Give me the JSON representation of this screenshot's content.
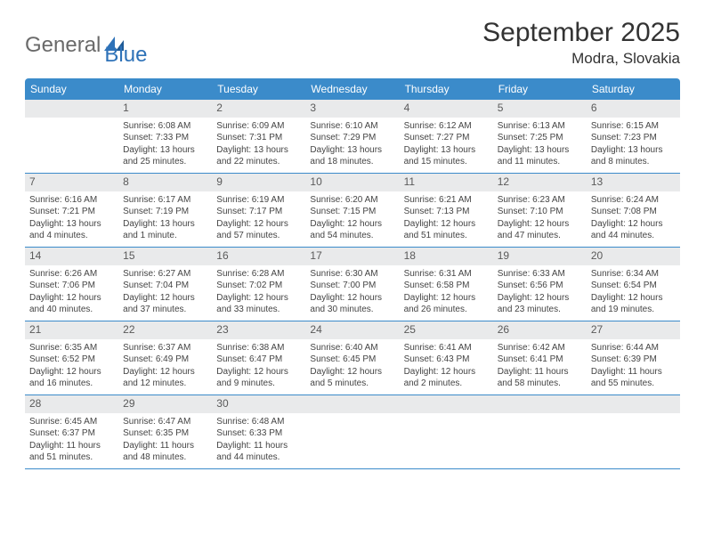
{
  "logo": {
    "part1": "General",
    "part2": "Blue"
  },
  "title": {
    "month": "September 2025",
    "location": "Modra, Slovakia"
  },
  "colors": {
    "header_bg": "#3b8bca",
    "header_text": "#ffffff",
    "daynum_bg": "#e9eaeb",
    "daynum_text": "#5a5a5a",
    "body_text": "#444444",
    "rule": "#3b8bca",
    "logo_gray": "#6a6a6a",
    "logo_blue": "#2e72b8",
    "title_color": "#333333"
  },
  "daynames": [
    "Sunday",
    "Monday",
    "Tuesday",
    "Wednesday",
    "Thursday",
    "Friday",
    "Saturday"
  ],
  "weeks": [
    [
      {
        "n": "",
        "sunrise": "",
        "sunset": "",
        "daylight": ""
      },
      {
        "n": "1",
        "sunrise": "Sunrise: 6:08 AM",
        "sunset": "Sunset: 7:33 PM",
        "daylight": "Daylight: 13 hours and 25 minutes."
      },
      {
        "n": "2",
        "sunrise": "Sunrise: 6:09 AM",
        "sunset": "Sunset: 7:31 PM",
        "daylight": "Daylight: 13 hours and 22 minutes."
      },
      {
        "n": "3",
        "sunrise": "Sunrise: 6:10 AM",
        "sunset": "Sunset: 7:29 PM",
        "daylight": "Daylight: 13 hours and 18 minutes."
      },
      {
        "n": "4",
        "sunrise": "Sunrise: 6:12 AM",
        "sunset": "Sunset: 7:27 PM",
        "daylight": "Daylight: 13 hours and 15 minutes."
      },
      {
        "n": "5",
        "sunrise": "Sunrise: 6:13 AM",
        "sunset": "Sunset: 7:25 PM",
        "daylight": "Daylight: 13 hours and 11 minutes."
      },
      {
        "n": "6",
        "sunrise": "Sunrise: 6:15 AM",
        "sunset": "Sunset: 7:23 PM",
        "daylight": "Daylight: 13 hours and 8 minutes."
      }
    ],
    [
      {
        "n": "7",
        "sunrise": "Sunrise: 6:16 AM",
        "sunset": "Sunset: 7:21 PM",
        "daylight": "Daylight: 13 hours and 4 minutes."
      },
      {
        "n": "8",
        "sunrise": "Sunrise: 6:17 AM",
        "sunset": "Sunset: 7:19 PM",
        "daylight": "Daylight: 13 hours and 1 minute."
      },
      {
        "n": "9",
        "sunrise": "Sunrise: 6:19 AM",
        "sunset": "Sunset: 7:17 PM",
        "daylight": "Daylight: 12 hours and 57 minutes."
      },
      {
        "n": "10",
        "sunrise": "Sunrise: 6:20 AM",
        "sunset": "Sunset: 7:15 PM",
        "daylight": "Daylight: 12 hours and 54 minutes."
      },
      {
        "n": "11",
        "sunrise": "Sunrise: 6:21 AM",
        "sunset": "Sunset: 7:13 PM",
        "daylight": "Daylight: 12 hours and 51 minutes."
      },
      {
        "n": "12",
        "sunrise": "Sunrise: 6:23 AM",
        "sunset": "Sunset: 7:10 PM",
        "daylight": "Daylight: 12 hours and 47 minutes."
      },
      {
        "n": "13",
        "sunrise": "Sunrise: 6:24 AM",
        "sunset": "Sunset: 7:08 PM",
        "daylight": "Daylight: 12 hours and 44 minutes."
      }
    ],
    [
      {
        "n": "14",
        "sunrise": "Sunrise: 6:26 AM",
        "sunset": "Sunset: 7:06 PM",
        "daylight": "Daylight: 12 hours and 40 minutes."
      },
      {
        "n": "15",
        "sunrise": "Sunrise: 6:27 AM",
        "sunset": "Sunset: 7:04 PM",
        "daylight": "Daylight: 12 hours and 37 minutes."
      },
      {
        "n": "16",
        "sunrise": "Sunrise: 6:28 AM",
        "sunset": "Sunset: 7:02 PM",
        "daylight": "Daylight: 12 hours and 33 minutes."
      },
      {
        "n": "17",
        "sunrise": "Sunrise: 6:30 AM",
        "sunset": "Sunset: 7:00 PM",
        "daylight": "Daylight: 12 hours and 30 minutes."
      },
      {
        "n": "18",
        "sunrise": "Sunrise: 6:31 AM",
        "sunset": "Sunset: 6:58 PM",
        "daylight": "Daylight: 12 hours and 26 minutes."
      },
      {
        "n": "19",
        "sunrise": "Sunrise: 6:33 AM",
        "sunset": "Sunset: 6:56 PM",
        "daylight": "Daylight: 12 hours and 23 minutes."
      },
      {
        "n": "20",
        "sunrise": "Sunrise: 6:34 AM",
        "sunset": "Sunset: 6:54 PM",
        "daylight": "Daylight: 12 hours and 19 minutes."
      }
    ],
    [
      {
        "n": "21",
        "sunrise": "Sunrise: 6:35 AM",
        "sunset": "Sunset: 6:52 PM",
        "daylight": "Daylight: 12 hours and 16 minutes."
      },
      {
        "n": "22",
        "sunrise": "Sunrise: 6:37 AM",
        "sunset": "Sunset: 6:49 PM",
        "daylight": "Daylight: 12 hours and 12 minutes."
      },
      {
        "n": "23",
        "sunrise": "Sunrise: 6:38 AM",
        "sunset": "Sunset: 6:47 PM",
        "daylight": "Daylight: 12 hours and 9 minutes."
      },
      {
        "n": "24",
        "sunrise": "Sunrise: 6:40 AM",
        "sunset": "Sunset: 6:45 PM",
        "daylight": "Daylight: 12 hours and 5 minutes."
      },
      {
        "n": "25",
        "sunrise": "Sunrise: 6:41 AM",
        "sunset": "Sunset: 6:43 PM",
        "daylight": "Daylight: 12 hours and 2 minutes."
      },
      {
        "n": "26",
        "sunrise": "Sunrise: 6:42 AM",
        "sunset": "Sunset: 6:41 PM",
        "daylight": "Daylight: 11 hours and 58 minutes."
      },
      {
        "n": "27",
        "sunrise": "Sunrise: 6:44 AM",
        "sunset": "Sunset: 6:39 PM",
        "daylight": "Daylight: 11 hours and 55 minutes."
      }
    ],
    [
      {
        "n": "28",
        "sunrise": "Sunrise: 6:45 AM",
        "sunset": "Sunset: 6:37 PM",
        "daylight": "Daylight: 11 hours and 51 minutes."
      },
      {
        "n": "29",
        "sunrise": "Sunrise: 6:47 AM",
        "sunset": "Sunset: 6:35 PM",
        "daylight": "Daylight: 11 hours and 48 minutes."
      },
      {
        "n": "30",
        "sunrise": "Sunrise: 6:48 AM",
        "sunset": "Sunset: 6:33 PM",
        "daylight": "Daylight: 11 hours and 44 minutes."
      },
      {
        "n": "",
        "sunrise": "",
        "sunset": "",
        "daylight": ""
      },
      {
        "n": "",
        "sunrise": "",
        "sunset": "",
        "daylight": ""
      },
      {
        "n": "",
        "sunrise": "",
        "sunset": "",
        "daylight": ""
      },
      {
        "n": "",
        "sunrise": "",
        "sunset": "",
        "daylight": ""
      }
    ]
  ]
}
